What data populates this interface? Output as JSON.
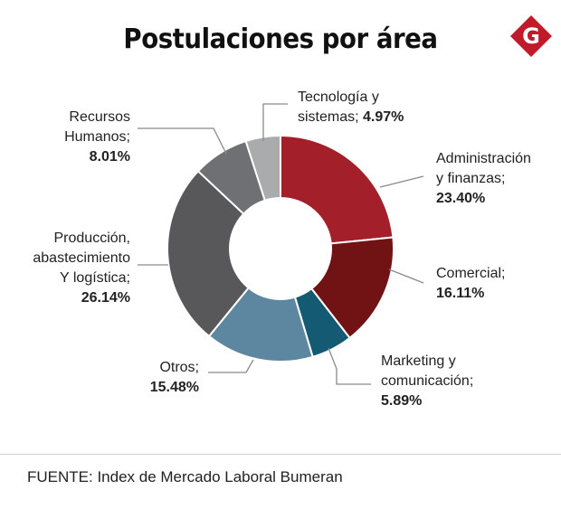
{
  "title": "Postulaciones por área",
  "logo_letter": "G",
  "source": "FUENTE: Index de Mercado Laboral Bumeran",
  "colors": {
    "logo": "#c01b2b",
    "leader_line": "#8a8a8a"
  },
  "chart_data": {
    "type": "pie",
    "donut": true,
    "title": "Postulaciones por área",
    "slices": [
      {
        "label_lines": [
          "Administración",
          "y finanzas;"
        ],
        "pct_text": "23.40%",
        "value": 23.4,
        "color": "#a31f2a"
      },
      {
        "label_lines": [
          "Comercial;"
        ],
        "pct_text": "16.11%",
        "value": 16.11,
        "color": "#711314"
      },
      {
        "label_lines": [
          "Marketing y",
          "comunicación;"
        ],
        "pct_text": "5.89%",
        "value": 5.89,
        "color": "#145a73"
      },
      {
        "label_lines": [
          "Otros;"
        ],
        "pct_text": "15.48%",
        "value": 15.48,
        "color": "#5d87a1"
      },
      {
        "label_lines": [
          "Producción,",
          "abastecimiento",
          "Y logística;"
        ],
        "pct_text": "26.14%",
        "value": 26.14,
        "color": "#58585b"
      },
      {
        "label_lines": [
          "Recursos",
          "Humanos;"
        ],
        "pct_text": "8.01%",
        "value": 8.01,
        "color": "#6e7074"
      },
      {
        "label_lines": [
          "Tecnología y",
          "sistemas;"
        ],
        "pct_text": "4.97%",
        "value": 4.97,
        "color": "#a9abad"
      }
    ]
  }
}
